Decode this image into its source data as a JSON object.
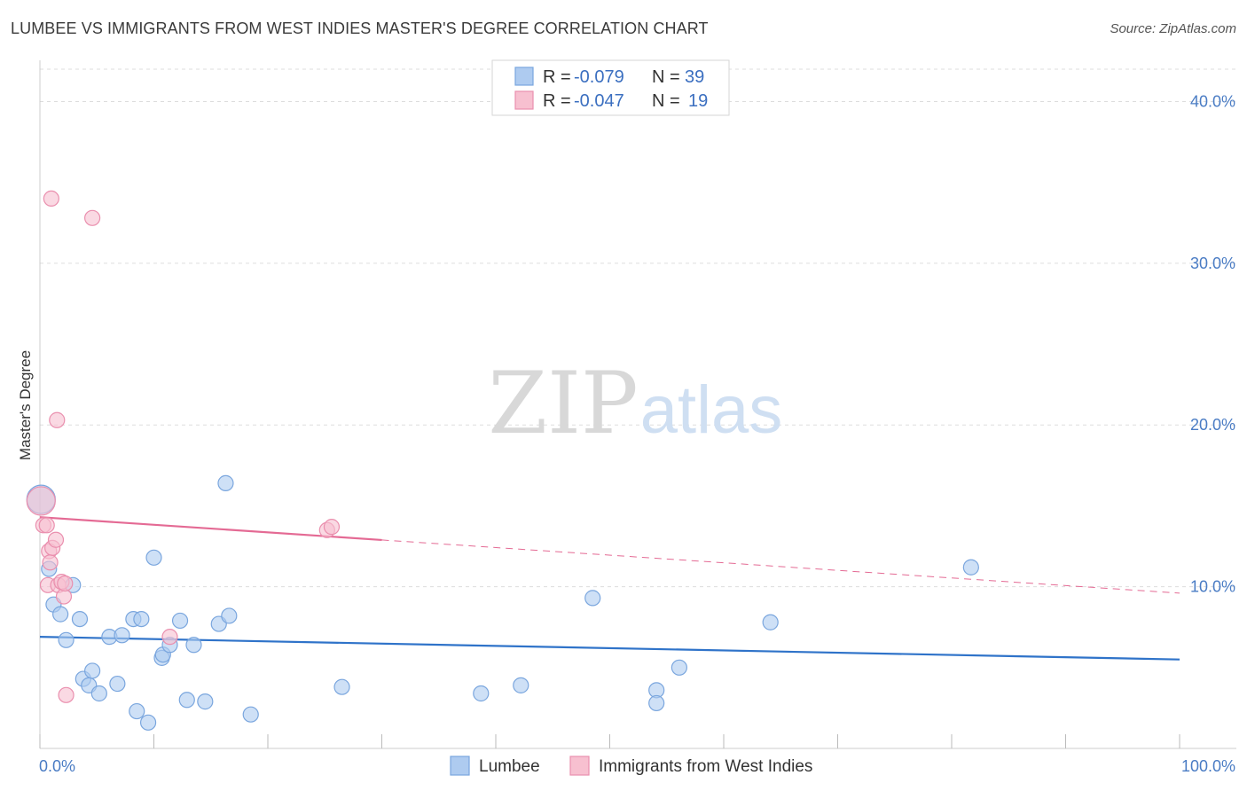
{
  "header": {
    "title": "LUMBEE VS IMMIGRANTS FROM WEST INDIES MASTER'S DEGREE CORRELATION CHART",
    "source": "Source: ZipAtlas.com"
  },
  "watermark": {
    "zip": "ZIP",
    "atlas": "atlas"
  },
  "colors": {
    "lumbee_fill": "#aecbf0",
    "lumbee_stroke": "#7aa6de",
    "lumbee_line": "#2f73c9",
    "wi_fill": "#f7c0d0",
    "wi_stroke": "#ea8fae",
    "wi_line": "#e46a94",
    "tick_label": "#4a7cc4",
    "grid": "#dddddd"
  },
  "legend": {
    "rows": [
      {
        "r_label": "R =",
        "r_value": "-0.079",
        "n_label": "N =",
        "n_value": "39"
      },
      {
        "r_label": "R =",
        "r_value": "-0.047",
        "n_label": "N =",
        "n_value": "19"
      }
    ]
  },
  "chart_data": {
    "type": "scatter",
    "title": "LUMBEE VS IMMIGRANTS FROM WEST INDIES MASTER'S DEGREE CORRELATION CHART",
    "xlabel": "",
    "ylabel": "Master's Degree",
    "xlim": [
      0,
      100
    ],
    "ylim": [
      0,
      42
    ],
    "x_tick_labels": [
      "0.0%",
      "100.0%"
    ],
    "y_ticks": [
      10,
      20,
      30,
      40
    ],
    "y_tick_labels": [
      "10.0%",
      "20.0%",
      "30.0%",
      "40.0%"
    ],
    "grid": true,
    "legend_position": "top-center",
    "series": [
      {
        "name": "Lumbee",
        "r": -0.079,
        "n": 39,
        "trend": {
          "x": [
            0,
            100
          ],
          "y": [
            6.9,
            5.5
          ],
          "dashed_from": null
        },
        "points": [
          {
            "x": 0.1,
            "y": 15.4,
            "big": true
          },
          {
            "x": 0.8,
            "y": 11.1
          },
          {
            "x": 1.2,
            "y": 8.9
          },
          {
            "x": 1.8,
            "y": 8.3
          },
          {
            "x": 2.3,
            "y": 6.7
          },
          {
            "x": 2.9,
            "y": 10.1
          },
          {
            "x": 3.5,
            "y": 8.0
          },
          {
            "x": 3.8,
            "y": 4.3
          },
          {
            "x": 4.3,
            "y": 3.9
          },
          {
            "x": 4.6,
            "y": 4.8
          },
          {
            "x": 5.2,
            "y": 3.4
          },
          {
            "x": 6.1,
            "y": 6.9
          },
          {
            "x": 7.2,
            "y": 7.0
          },
          {
            "x": 6.8,
            "y": 4.0
          },
          {
            "x": 8.2,
            "y": 8.0
          },
          {
            "x": 8.5,
            "y": 2.3
          },
          {
            "x": 8.9,
            "y": 8.0
          },
          {
            "x": 9.5,
            "y": 1.6
          },
          {
            "x": 10.0,
            "y": 11.8
          },
          {
            "x": 10.7,
            "y": 5.6
          },
          {
            "x": 10.8,
            "y": 5.8
          },
          {
            "x": 11.4,
            "y": 6.4
          },
          {
            "x": 12.3,
            "y": 7.9
          },
          {
            "x": 12.9,
            "y": 3.0
          },
          {
            "x": 13.5,
            "y": 6.4
          },
          {
            "x": 14.5,
            "y": 2.9
          },
          {
            "x": 15.7,
            "y": 7.7
          },
          {
            "x": 16.3,
            "y": 16.4
          },
          {
            "x": 16.6,
            "y": 8.2
          },
          {
            "x": 18.5,
            "y": 2.1
          },
          {
            "x": 26.5,
            "y": 3.8
          },
          {
            "x": 38.7,
            "y": 3.4
          },
          {
            "x": 42.2,
            "y": 3.9
          },
          {
            "x": 48.5,
            "y": 9.3
          },
          {
            "x": 54.1,
            "y": 3.6
          },
          {
            "x": 54.1,
            "y": 2.8
          },
          {
            "x": 56.1,
            "y": 5.0
          },
          {
            "x": 64.1,
            "y": 7.8
          },
          {
            "x": 81.7,
            "y": 11.2
          }
        ]
      },
      {
        "name": "Immigrants from West Indies",
        "r": -0.047,
        "n": 19,
        "trend": {
          "x": [
            0,
            100
          ],
          "y": [
            14.3,
            9.6
          ],
          "dashed_from": 30
        },
        "points": [
          {
            "x": 0.1,
            "y": 15.3,
            "big": true
          },
          {
            "x": 0.3,
            "y": 13.8
          },
          {
            "x": 0.6,
            "y": 13.8
          },
          {
            "x": 0.8,
            "y": 12.2
          },
          {
            "x": 0.9,
            "y": 11.5
          },
          {
            "x": 0.7,
            "y": 10.1
          },
          {
            "x": 1.0,
            "y": 34.0
          },
          {
            "x": 1.1,
            "y": 12.4
          },
          {
            "x": 1.4,
            "y": 12.9
          },
          {
            "x": 1.5,
            "y": 20.3
          },
          {
            "x": 1.6,
            "y": 10.1
          },
          {
            "x": 1.9,
            "y": 10.3
          },
          {
            "x": 2.1,
            "y": 9.4
          },
          {
            "x": 2.2,
            "y": 10.2
          },
          {
            "x": 2.3,
            "y": 3.3
          },
          {
            "x": 4.6,
            "y": 32.8
          },
          {
            "x": 11.4,
            "y": 6.9
          },
          {
            "x": 25.2,
            "y": 13.5
          },
          {
            "x": 25.6,
            "y": 13.7
          }
        ]
      }
    ]
  },
  "bottom_legend": {
    "items": [
      {
        "label": "Lumbee"
      },
      {
        "label": "Immigrants from West Indies"
      }
    ]
  }
}
